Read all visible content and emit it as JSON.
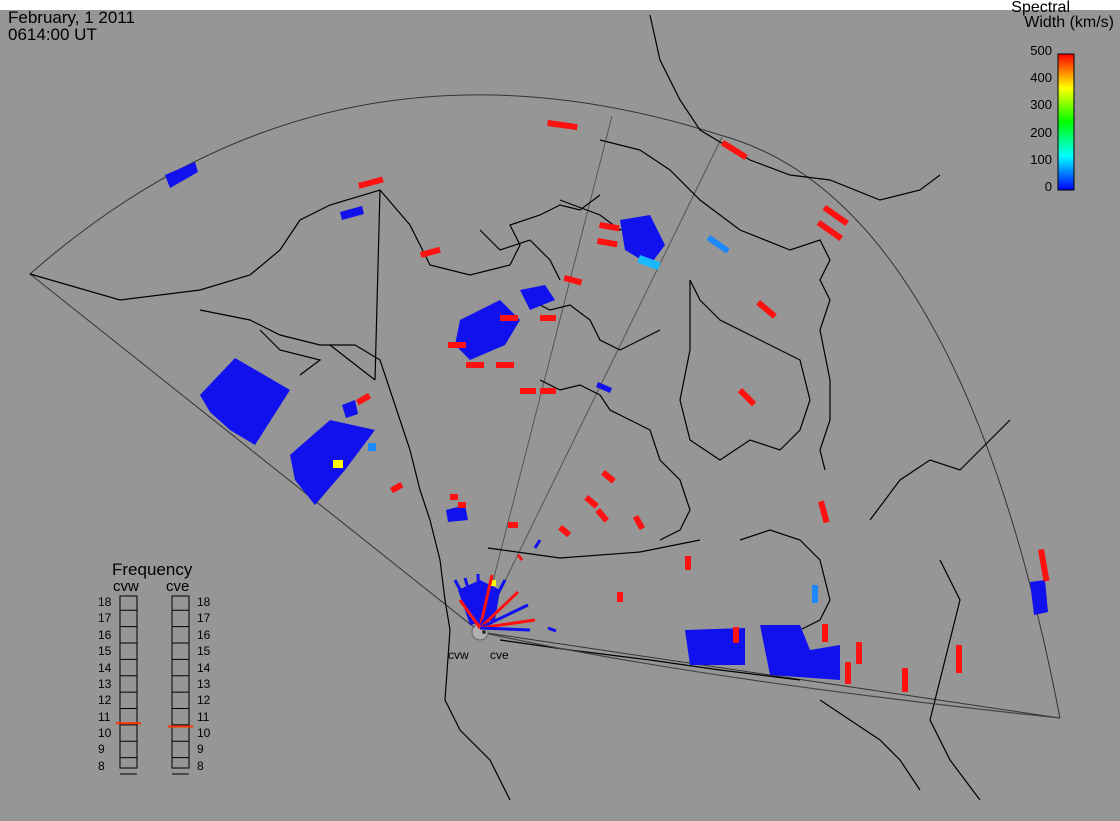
{
  "header": {
    "date": "February, 1 2011",
    "time": "0614:00 UT"
  },
  "colorbar": {
    "title_line1": "Spectral",
    "title_line2": "Width (km/s)",
    "ticks": [
      "500",
      "400",
      "300",
      "200",
      "100",
      "0"
    ],
    "colors": [
      "#ff0000",
      "#ffff00",
      "#00ff00",
      "#00ffff",
      "#0000ff"
    ]
  },
  "frequency_panel": {
    "title": "Frequency",
    "radars": [
      {
        "name": "cvw",
        "freq_mhz": 10.6
      },
      {
        "name": "cve",
        "freq_mhz": 10.4
      }
    ],
    "ticks": [
      "18",
      "17",
      "16",
      "15",
      "14",
      "13",
      "12",
      "11",
      "10",
      "9",
      "8"
    ],
    "indicator_color": "#ff3300"
  },
  "sites": {
    "west": "cvw",
    "east": "cve"
  },
  "colors": {
    "background": "#969696",
    "low_width": "#1111ee",
    "high_width": "#ff1111",
    "mid_width": "#1e88ff"
  }
}
